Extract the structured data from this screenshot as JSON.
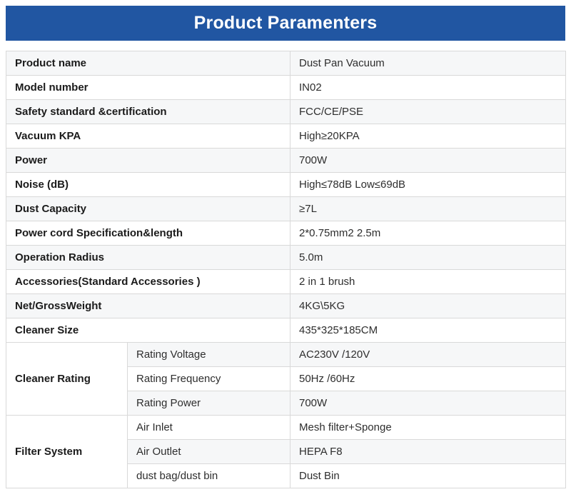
{
  "header": {
    "title": "Product Paramenters",
    "bg_color": "#2156a2",
    "text_color": "#ffffff"
  },
  "table": {
    "stripe_color": "#f6f7f8",
    "border_color": "#d9d9d9",
    "simple_rows": [
      {
        "label": "Product name",
        "value": "Dust Pan Vacuum"
      },
      {
        "label": "Model number",
        "value": "IN02"
      },
      {
        "label": "Safety standard &certification",
        "value": "FCC/CE/PSE"
      },
      {
        "label": "Vacuum KPA",
        "value": "High≥20KPA"
      },
      {
        "label": "Power",
        "value": "700W"
      },
      {
        "label": "Noise (dB)",
        "value": "High≤78dB Low≤69dB"
      },
      {
        "label": "Dust Capacity",
        "value": "≥7L"
      },
      {
        "label": "Power cord Specification&length",
        "value": "2*0.75mm2 2.5m"
      },
      {
        "label": "Operation Radius",
        "value": "5.0m"
      },
      {
        "label": "Accessories(Standard Accessories )",
        "value": "2 in 1 brush"
      },
      {
        "label": "Net/GrossWeight",
        "value": "4KG\\5KG"
      },
      {
        "label": "Cleaner Size",
        "value": "435*325*185CM"
      }
    ],
    "groups": [
      {
        "label": "Cleaner Rating",
        "rows": [
          {
            "label": "Rating Voltage",
            "value": "AC230V /120V"
          },
          {
            "label": "Rating Frequency",
            "value": "50Hz /60Hz"
          },
          {
            "label": "Rating Power",
            "value": "700W"
          }
        ]
      },
      {
        "label": "Filter System",
        "rows": [
          {
            "label": "Air Inlet",
            "value": "Mesh filter+Sponge"
          },
          {
            "label": "Air Outlet",
            "value": "HEPA F8"
          },
          {
            "label": "dust bag/dust bin",
            "value": "Dust Bin"
          }
        ]
      }
    ]
  }
}
